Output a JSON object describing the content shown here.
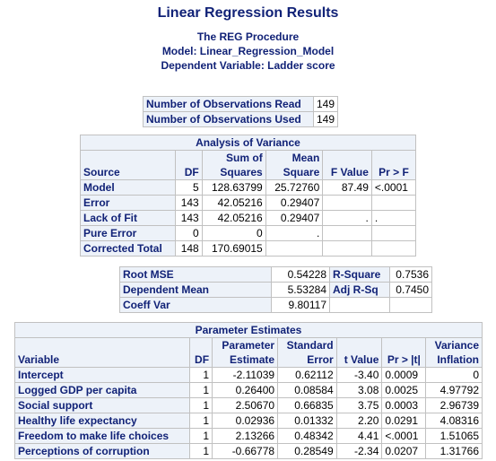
{
  "title": "Linear Regression Results",
  "subtitle": {
    "procedure": "The REG Procedure",
    "model": "Model: Linear_Regression_Model",
    "dependent": "Dependent  Variable: Ladder score"
  },
  "observations": {
    "rows": [
      {
        "label": "Number of Observations Read",
        "value": "149"
      },
      {
        "label": "Number of Observations Used",
        "value": "149"
      }
    ]
  },
  "anova": {
    "caption": "Analysis of Variance",
    "headers": {
      "source": "Source",
      "df": "DF",
      "ss_top": "Sum of",
      "ss_bottom": "Squares",
      "ms_top": "Mean",
      "ms_bottom": "Square",
      "f": "F Value",
      "p": "Pr > F"
    },
    "rows": [
      {
        "source": "Model",
        "df": "5",
        "ss": "128.63799",
        "ms": "25.72760",
        "f": "87.49",
        "p": "<.0001"
      },
      {
        "source": "Error",
        "df": "143",
        "ss": "42.05216",
        "ms": "0.29407",
        "f": "",
        "p": ""
      },
      {
        "source": "Lack of Fit",
        "df": "143",
        "ss": "42.05216",
        "ms": "0.29407",
        "f": ".",
        "p": "."
      },
      {
        "source": "Pure Error",
        "df": "0",
        "ss": "0",
        "ms": ".",
        "f": "",
        "p": ""
      },
      {
        "source": "Corrected Total",
        "df": "148",
        "ss": "170.69015",
        "ms": "",
        "f": "",
        "p": ""
      }
    ]
  },
  "fit": {
    "rows": [
      {
        "l1": "Root MSE",
        "v1": "0.54228",
        "l2": "R-Square",
        "v2": "0.7536"
      },
      {
        "l1": "Dependent Mean",
        "v1": "5.53284",
        "l2": "Adj R-Sq",
        "v2": "0.7450"
      },
      {
        "l1": "Coeff Var",
        "v1": "9.80117",
        "l2": "",
        "v2": ""
      }
    ]
  },
  "params": {
    "caption": "Parameter Estimates",
    "headers": {
      "variable": "Variable",
      "df": "DF",
      "pe_top": "Parameter",
      "pe_bottom": "Estimate",
      "se_top": "Standard",
      "se_bottom": "Error",
      "t": "t Value",
      "p": "Pr > |t|",
      "vi_top": "Variance",
      "vi_bottom": "Inflation"
    },
    "rows": [
      {
        "variable": "Intercept",
        "df": "1",
        "est": "-2.11039",
        "se": "0.62112",
        "t": "-3.40",
        "p": "0.0009",
        "vif": "0"
      },
      {
        "variable": "Logged GDP per capita",
        "df": "1",
        "est": "0.26400",
        "se": "0.08584",
        "t": "3.08",
        "p": "0.0025",
        "vif": "4.97792"
      },
      {
        "variable": "Social support",
        "df": "1",
        "est": "2.50670",
        "se": "0.66835",
        "t": "3.75",
        "p": "0.0003",
        "vif": "2.96739"
      },
      {
        "variable": "Healthy life expectancy",
        "df": "1",
        "est": "0.02936",
        "se": "0.01332",
        "t": "2.20",
        "p": "0.0291",
        "vif": "4.08316"
      },
      {
        "variable": "Freedom to make life choices",
        "df": "1",
        "est": "2.13266",
        "se": "0.48342",
        "t": "4.41",
        "p": "<.0001",
        "vif": "1.51065"
      },
      {
        "variable": "Perceptions of corruption",
        "df": "1",
        "est": "-0.66778",
        "se": "0.28549",
        "t": "-2.34",
        "p": "0.0207",
        "vif": "1.31766"
      }
    ]
  }
}
